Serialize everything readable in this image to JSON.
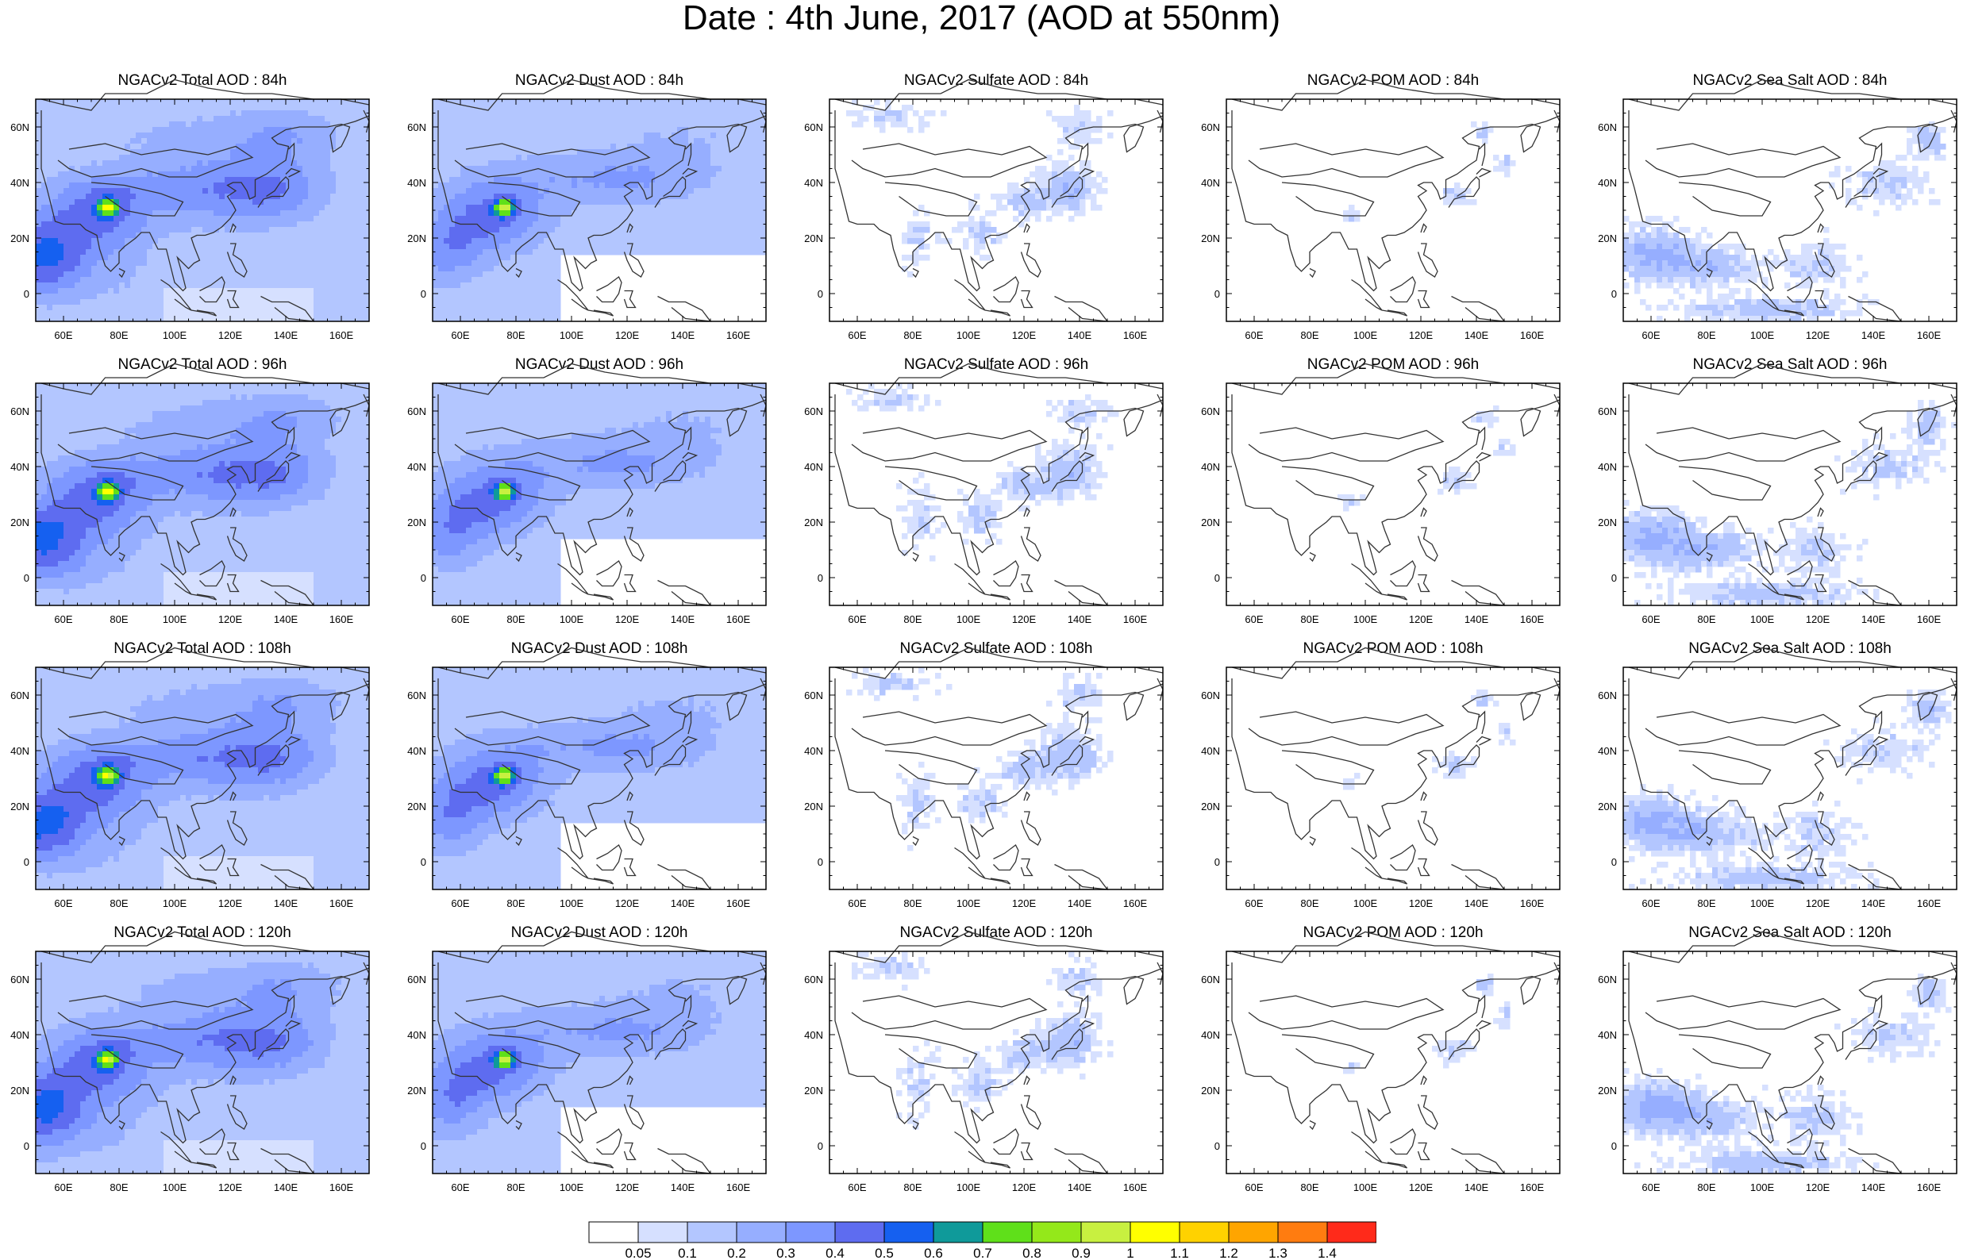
{
  "title": "Date : 4th June, 2017 (AOD at 550nm)",
  "colors": {
    "levels": [
      "#ffffff",
      "#d6e0ff",
      "#b3c6ff",
      "#96aeff",
      "#7d97ff",
      "#5e6cf0",
      "#1560f0",
      "#0f9a9a",
      "#5fe01a",
      "#94e81a",
      "#c8f040",
      "#ffff00",
      "#ffd200",
      "#ffa500",
      "#ff7c10",
      "#ff2a1a"
    ],
    "coast": "#333333"
  },
  "colorbar": {
    "labels": [
      "0.05",
      "0.1",
      "0.2",
      "0.3",
      "0.4",
      "0.5",
      "0.6",
      "0.7",
      "0.8",
      "0.9",
      "1",
      "1.1",
      "1.2",
      "1.3",
      "1.4"
    ]
  },
  "axes": {
    "lon_labels": [
      "60E",
      "80E",
      "100E",
      "120E",
      "140E",
      "160E"
    ],
    "lat_labels": [
      "60N",
      "40N",
      "20N",
      "0"
    ],
    "lon_values": [
      60,
      80,
      100,
      120,
      140,
      160
    ],
    "lat_values": [
      60,
      40,
      20,
      0
    ],
    "lon_range": [
      50,
      170
    ],
    "lat_range": [
      -10,
      70
    ]
  },
  "panels": [
    {
      "title": "NGACv2 Total AOD : 84h",
      "species": "total"
    },
    {
      "title": "NGACv2 Dust AOD : 84h",
      "species": "dust"
    },
    {
      "title": "NGACv2 Sulfate AOD : 84h",
      "species": "sulfate"
    },
    {
      "title": "NGACv2 POM AOD : 84h",
      "species": "pom"
    },
    {
      "title": "NGACv2 Sea Salt AOD : 84h",
      "species": "seasalt"
    },
    {
      "title": "NGACv2 Total AOD : 96h",
      "species": "total"
    },
    {
      "title": "NGACv2 Dust AOD : 96h",
      "species": "dust"
    },
    {
      "title": "NGACv2 Sulfate AOD : 96h",
      "species": "sulfate"
    },
    {
      "title": "NGACv2 POM AOD : 96h",
      "species": "pom"
    },
    {
      "title": "NGACv2 Sea Salt AOD : 96h",
      "species": "seasalt"
    },
    {
      "title": "NGACv2 Total AOD : 108h",
      "species": "total"
    },
    {
      "title": "NGACv2 Dust AOD : 108h",
      "species": "dust"
    },
    {
      "title": "NGACv2 Sulfate AOD : 108h",
      "species": "sulfate"
    },
    {
      "title": "NGACv2 POM AOD : 108h",
      "species": "pom"
    },
    {
      "title": "NGACv2 Sea Salt AOD : 108h",
      "species": "seasalt"
    },
    {
      "title": "NGACv2 Total AOD : 120h",
      "species": "total"
    },
    {
      "title": "NGACv2 Dust AOD : 120h",
      "species": "dust"
    },
    {
      "title": "NGACv2 Sulfate AOD : 120h",
      "species": "sulfate"
    },
    {
      "title": "NGACv2 POM AOD : 120h",
      "species": "pom"
    },
    {
      "title": "NGACv2 Sea Salt  AOD : 120h",
      "species": "seasalt"
    }
  ]
}
